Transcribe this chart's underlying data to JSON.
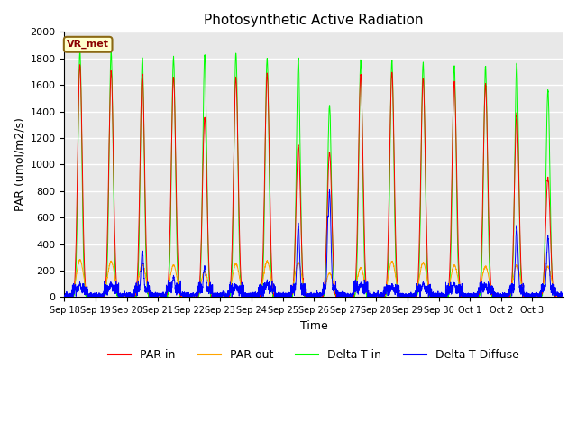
{
  "title": "Photosynthetic Active Radiation",
  "ylabel": "PAR (umol/m2/s)",
  "xlabel": "Time",
  "annotation": "VR_met",
  "ylim": [
    0,
    2000
  ],
  "background_color": "#e8e8e8",
  "grid_color": "white",
  "legend_labels": [
    "PAR in",
    "PAR out",
    "Delta-T in",
    "Delta-T Diffuse"
  ],
  "legend_colors": [
    "red",
    "orange",
    "lime",
    "blue"
  ],
  "xtick_labels": [
    "Sep 18",
    "Sep 19",
    "Sep 20",
    "Sep 21",
    "Sep 22",
    "Sep 23",
    "Sep 24",
    "Sep 25",
    "Sep 26",
    "Sep 27",
    "Sep 28",
    "Sep 29",
    "Sep 30",
    "Oct 1",
    "Oct 2",
    "Oct 3"
  ],
  "n_days": 16,
  "par_in_peaks": [
    1750,
    1700,
    1680,
    1660,
    1350,
    1650,
    1680,
    1150,
    1090,
    1680,
    1700,
    1650,
    1620,
    1600,
    1380,
    900
  ],
  "par_out_peaks": [
    280,
    270,
    250,
    240,
    190,
    250,
    270,
    260,
    180,
    220,
    270,
    260,
    240,
    230,
    240,
    230
  ],
  "delta_t_in_peaks": [
    1860,
    1850,
    1810,
    1810,
    1830,
    1840,
    1800,
    1800,
    1450,
    1790,
    1780,
    1770,
    1740,
    1740,
    1760,
    1560
  ],
  "delta_t_diffuse_peaks": [
    100,
    100,
    340,
    150,
    230,
    90,
    110,
    540,
    800,
    100,
    90,
    110,
    100,
    90,
    530,
    450
  ],
  "blue_base_noise": 80,
  "figsize": [
    6.4,
    4.8
  ],
  "dpi": 100
}
